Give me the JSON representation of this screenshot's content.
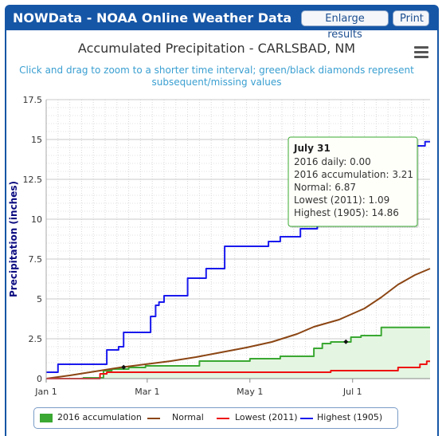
{
  "window": {
    "title": "NOWData - NOAA Online Weather Data",
    "buttons": {
      "enlarge": "Enlarge results",
      "print": "Print"
    }
  },
  "chart_data": {
    "type": "line",
    "title": "Accumulated Precipitation - CARLSBAD, NM",
    "subtitle_lines": [
      "Click and drag to zoom to a shorter time interval; green/black diamonds represent",
      "subsequent/missing values"
    ],
    "ylabel": "Precipitation (inches)",
    "xlabel": "",
    "xlim": [
      1,
      229
    ],
    "ylim": [
      0,
      17.5
    ],
    "y_ticks": [
      0,
      2.5,
      5,
      7.5,
      10,
      12.5,
      15,
      17.5
    ],
    "y_tick_labels": [
      "0",
      "2.5",
      "5",
      "7.5",
      "10",
      "12.5",
      "15",
      "17.5"
    ],
    "x_ticks": [
      1,
      61,
      122,
      183
    ],
    "x_tick_labels": [
      "Jan 1",
      "Mar 1",
      "May 1",
      "Jul 1"
    ],
    "grid": true,
    "legend_position": "bottom",
    "series": [
      {
        "name": "Highest (1905)",
        "color": "#1a1aee",
        "step": true,
        "points": [
          [
            1,
            0.4
          ],
          [
            8,
            0.4
          ],
          [
            8,
            0.9
          ],
          [
            37,
            0.9
          ],
          [
            37,
            1.8
          ],
          [
            44,
            1.8
          ],
          [
            44,
            2.0
          ],
          [
            47,
            2.0
          ],
          [
            47,
            2.9
          ],
          [
            63,
            2.9
          ],
          [
            63,
            3.9
          ],
          [
            66,
            3.9
          ],
          [
            66,
            4.6
          ],
          [
            68,
            4.6
          ],
          [
            68,
            4.8
          ],
          [
            71,
            4.8
          ],
          [
            71,
            5.2
          ],
          [
            85,
            5.2
          ],
          [
            85,
            6.3
          ],
          [
            96,
            6.3
          ],
          [
            96,
            6.9
          ],
          [
            107,
            6.9
          ],
          [
            107,
            8.3
          ],
          [
            133,
            8.3
          ],
          [
            133,
            8.6
          ],
          [
            140,
            8.6
          ],
          [
            140,
            8.9
          ],
          [
            152,
            8.9
          ],
          [
            152,
            9.4
          ],
          [
            162,
            9.4
          ],
          [
            162,
            11.3
          ],
          [
            174,
            11.3
          ],
          [
            174,
            11.3
          ],
          [
            190,
            11.3
          ],
          [
            190,
            12.3
          ],
          [
            200,
            12.3
          ],
          [
            200,
            14.3
          ],
          [
            214,
            14.3
          ],
          [
            214,
            14.6
          ],
          [
            226,
            14.6
          ],
          [
            226,
            14.86
          ],
          [
            229,
            14.86
          ]
        ]
      },
      {
        "name": "Normal",
        "color": "#8b4513",
        "step": false,
        "points": [
          [
            1,
            0.0
          ],
          [
            15,
            0.2
          ],
          [
            30,
            0.45
          ],
          [
            45,
            0.7
          ],
          [
            60,
            0.9
          ],
          [
            75,
            1.1
          ],
          [
            90,
            1.35
          ],
          [
            105,
            1.65
          ],
          [
            120,
            1.95
          ],
          [
            135,
            2.3
          ],
          [
            150,
            2.8
          ],
          [
            160,
            3.25
          ],
          [
            175,
            3.7
          ],
          [
            190,
            4.4
          ],
          [
            200,
            5.1
          ],
          [
            210,
            5.9
          ],
          [
            220,
            6.5
          ],
          [
            229,
            6.9
          ]
        ]
      },
      {
        "name": "Lowest (2011)",
        "color": "#ee1111",
        "step": true,
        "points": [
          [
            1,
            0.0
          ],
          [
            33,
            0.0
          ],
          [
            33,
            0.3
          ],
          [
            37,
            0.3
          ],
          [
            37,
            0.4
          ],
          [
            170,
            0.4
          ],
          [
            170,
            0.5
          ],
          [
            210,
            0.5
          ],
          [
            210,
            0.7
          ],
          [
            223,
            0.7
          ],
          [
            223,
            0.9
          ],
          [
            227,
            0.9
          ],
          [
            227,
            1.09
          ],
          [
            229,
            1.09
          ]
        ]
      },
      {
        "name": "2016 accumulation",
        "color": "#3aa832",
        "fill": "#e4f5e1",
        "step": true,
        "points": [
          [
            1,
            0.0
          ],
          [
            23,
            0.0
          ],
          [
            23,
            0.05
          ],
          [
            35,
            0.05
          ],
          [
            35,
            0.5
          ],
          [
            40,
            0.5
          ],
          [
            40,
            0.6
          ],
          [
            50,
            0.6
          ],
          [
            50,
            0.7
          ],
          [
            60,
            0.7
          ],
          [
            60,
            0.8
          ],
          [
            92,
            0.8
          ],
          [
            92,
            1.1
          ],
          [
            122,
            1.1
          ],
          [
            122,
            1.25
          ],
          [
            140,
            1.25
          ],
          [
            140,
            1.4
          ],
          [
            160,
            1.4
          ],
          [
            160,
            1.9
          ],
          [
            165,
            1.9
          ],
          [
            165,
            2.2
          ],
          [
            170,
            2.2
          ],
          [
            170,
            2.3
          ],
          [
            182,
            2.3
          ],
          [
            182,
            2.6
          ],
          [
            188,
            2.6
          ],
          [
            188,
            2.7
          ],
          [
            200,
            2.7
          ],
          [
            200,
            3.21
          ],
          [
            229,
            3.21
          ]
        ]
      }
    ],
    "markers": [
      [
        47,
        0.72
      ],
      [
        179,
        2.31
      ]
    ],
    "tooltip": {
      "header": "July 31",
      "lines": [
        "2016 daily: 0.00",
        "2016 accumulation: 3.21",
        "Normal: 6.87",
        "Lowest (2011): 1.09",
        "Highest (1905): 14.86"
      ]
    }
  },
  "colors": {
    "accent": "#1656a6",
    "tooltip_border": "#3aa832"
  },
  "icons": {
    "menu": "hamburger-menu-icon"
  }
}
